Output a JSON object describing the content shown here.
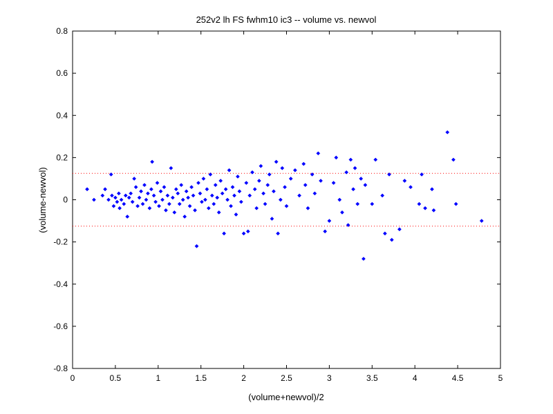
{
  "chart_data": {
    "type": "scatter",
    "title": "252v2 lh FS fwhm10 ic3 -- volume vs. newvol",
    "xlabel": "(volume+newvol)/2",
    "ylabel": "(volume-newvol)",
    "xlim": [
      0,
      5
    ],
    "ylim": [
      -0.8,
      0.8
    ],
    "xticks": [
      0,
      0.5,
      1,
      1.5,
      2,
      2.5,
      3,
      3.5,
      4,
      4.5,
      5
    ],
    "yticks": [
      -0.8,
      -0.6,
      -0.4,
      -0.2,
      0,
      0.2,
      0.4,
      0.6,
      0.8
    ],
    "xtick_labels": [
      "0",
      "0.5",
      "1",
      "1.5",
      "2",
      "2.5",
      "3",
      "3.5",
      "4",
      "4.5",
      "5"
    ],
    "ytick_labels": [
      "-0.8",
      "-0.6",
      "-0.4",
      "-0.2",
      "0",
      "0.2",
      "0.4",
      "0.6",
      "0.8"
    ],
    "grid": false,
    "marker_color": "#0000ff",
    "reference_line_color": "#ff0000",
    "reference_lines": [
      0.125,
      -0.125
    ],
    "series": [
      {
        "marker": "diamond",
        "points": [
          [
            0.17,
            0.05
          ],
          [
            0.25,
            0.0
          ],
          [
            0.35,
            0.02
          ],
          [
            0.38,
            0.05
          ],
          [
            0.42,
            0.0
          ],
          [
            0.45,
            0.12
          ],
          [
            0.46,
            0.02
          ],
          [
            0.48,
            -0.03
          ],
          [
            0.5,
            0.01
          ],
          [
            0.52,
            -0.01
          ],
          [
            0.54,
            0.03
          ],
          [
            0.55,
            -0.04
          ],
          [
            0.57,
            0.0
          ],
          [
            0.6,
            -0.02
          ],
          [
            0.62,
            0.02
          ],
          [
            0.64,
            -0.08
          ],
          [
            0.66,
            0.01
          ],
          [
            0.68,
            0.03
          ],
          [
            0.7,
            -0.01
          ],
          [
            0.72,
            0.1
          ],
          [
            0.74,
            0.06
          ],
          [
            0.76,
            -0.03
          ],
          [
            0.78,
            0.01
          ],
          [
            0.8,
            0.04
          ],
          [
            0.82,
            -0.02
          ],
          [
            0.84,
            0.07
          ],
          [
            0.86,
            0.0
          ],
          [
            0.88,
            0.03
          ],
          [
            0.9,
            -0.04
          ],
          [
            0.92,
            0.05
          ],
          [
            0.93,
            0.18
          ],
          [
            0.95,
            0.02
          ],
          [
            0.97,
            -0.01
          ],
          [
            0.99,
            0.08
          ],
          [
            1.01,
            -0.03
          ],
          [
            1.03,
            0.04
          ],
          [
            1.05,
            0.0
          ],
          [
            1.07,
            0.06
          ],
          [
            1.09,
            -0.05
          ],
          [
            1.11,
            0.02
          ],
          [
            1.13,
            -0.02
          ],
          [
            1.15,
            0.15
          ],
          [
            1.17,
            0.01
          ],
          [
            1.19,
            -0.06
          ],
          [
            1.21,
            0.05
          ],
          [
            1.23,
            0.03
          ],
          [
            1.25,
            -0.02
          ],
          [
            1.27,
            0.07
          ],
          [
            1.29,
            0.0
          ],
          [
            1.31,
            -0.08
          ],
          [
            1.33,
            0.04
          ],
          [
            1.35,
            0.01
          ],
          [
            1.37,
            -0.03
          ],
          [
            1.39,
            0.06
          ],
          [
            1.41,
            0.02
          ],
          [
            1.43,
            -0.05
          ],
          [
            1.45,
            -0.22
          ],
          [
            1.47,
            0.08
          ],
          [
            1.49,
            0.03
          ],
          [
            1.51,
            -0.01
          ],
          [
            1.53,
            0.1
          ],
          [
            1.55,
            0.0
          ],
          [
            1.57,
            0.05
          ],
          [
            1.59,
            -0.04
          ],
          [
            1.61,
            0.12
          ],
          [
            1.63,
            0.02
          ],
          [
            1.65,
            -0.02
          ],
          [
            1.67,
            0.07
          ],
          [
            1.69,
            0.01
          ],
          [
            1.71,
            -0.06
          ],
          [
            1.73,
            0.09
          ],
          [
            1.75,
            0.03
          ],
          [
            1.77,
            -0.16
          ],
          [
            1.79,
            0.05
          ],
          [
            1.81,
            0.0
          ],
          [
            1.83,
            0.14
          ],
          [
            1.85,
            -0.03
          ],
          [
            1.87,
            0.06
          ],
          [
            1.89,
            0.02
          ],
          [
            1.91,
            -0.07
          ],
          [
            1.93,
            0.11
          ],
          [
            1.95,
            0.04
          ],
          [
            1.97,
            -0.01
          ],
          [
            2.0,
            -0.16
          ],
          [
            2.03,
            0.08
          ],
          [
            2.05,
            -0.15
          ],
          [
            2.07,
            0.02
          ],
          [
            2.1,
            0.13
          ],
          [
            2.13,
            0.05
          ],
          [
            2.15,
            -0.04
          ],
          [
            2.18,
            0.09
          ],
          [
            2.2,
            0.16
          ],
          [
            2.23,
            0.03
          ],
          [
            2.25,
            -0.02
          ],
          [
            2.28,
            0.07
          ],
          [
            2.3,
            0.12
          ],
          [
            2.33,
            -0.09
          ],
          [
            2.35,
            0.04
          ],
          [
            2.38,
            0.18
          ],
          [
            2.4,
            -0.16
          ],
          [
            2.43,
            0.0
          ],
          [
            2.45,
            0.15
          ],
          [
            2.48,
            0.06
          ],
          [
            2.5,
            -0.03
          ],
          [
            2.55,
            0.1
          ],
          [
            2.6,
            0.14
          ],
          [
            2.65,
            0.02
          ],
          [
            2.7,
            0.17
          ],
          [
            2.72,
            0.07
          ],
          [
            2.75,
            -0.04
          ],
          [
            2.8,
            0.12
          ],
          [
            2.83,
            0.03
          ],
          [
            2.87,
            0.22
          ],
          [
            2.9,
            0.09
          ],
          [
            2.95,
            -0.15
          ],
          [
            3.0,
            -0.1
          ],
          [
            3.05,
            0.08
          ],
          [
            3.08,
            0.2
          ],
          [
            3.12,
            0.0
          ],
          [
            3.15,
            -0.06
          ],
          [
            3.2,
            0.13
          ],
          [
            3.22,
            -0.12
          ],
          [
            3.25,
            0.19
          ],
          [
            3.28,
            0.05
          ],
          [
            3.3,
            0.15
          ],
          [
            3.33,
            -0.02
          ],
          [
            3.37,
            0.1
          ],
          [
            3.4,
            -0.28
          ],
          [
            3.42,
            0.07
          ],
          [
            3.5,
            -0.02
          ],
          [
            3.54,
            0.19
          ],
          [
            3.62,
            0.02
          ],
          [
            3.65,
            -0.16
          ],
          [
            3.7,
            0.12
          ],
          [
            3.73,
            -0.19
          ],
          [
            3.82,
            -0.14
          ],
          [
            3.88,
            0.09
          ],
          [
            3.95,
            0.06
          ],
          [
            4.05,
            -0.02
          ],
          [
            4.08,
            0.12
          ],
          [
            4.12,
            -0.04
          ],
          [
            4.2,
            0.05
          ],
          [
            4.22,
            -0.05
          ],
          [
            4.38,
            0.32
          ],
          [
            4.45,
            0.19
          ],
          [
            4.48,
            -0.02
          ],
          [
            4.78,
            -0.1
          ]
        ]
      }
    ]
  }
}
